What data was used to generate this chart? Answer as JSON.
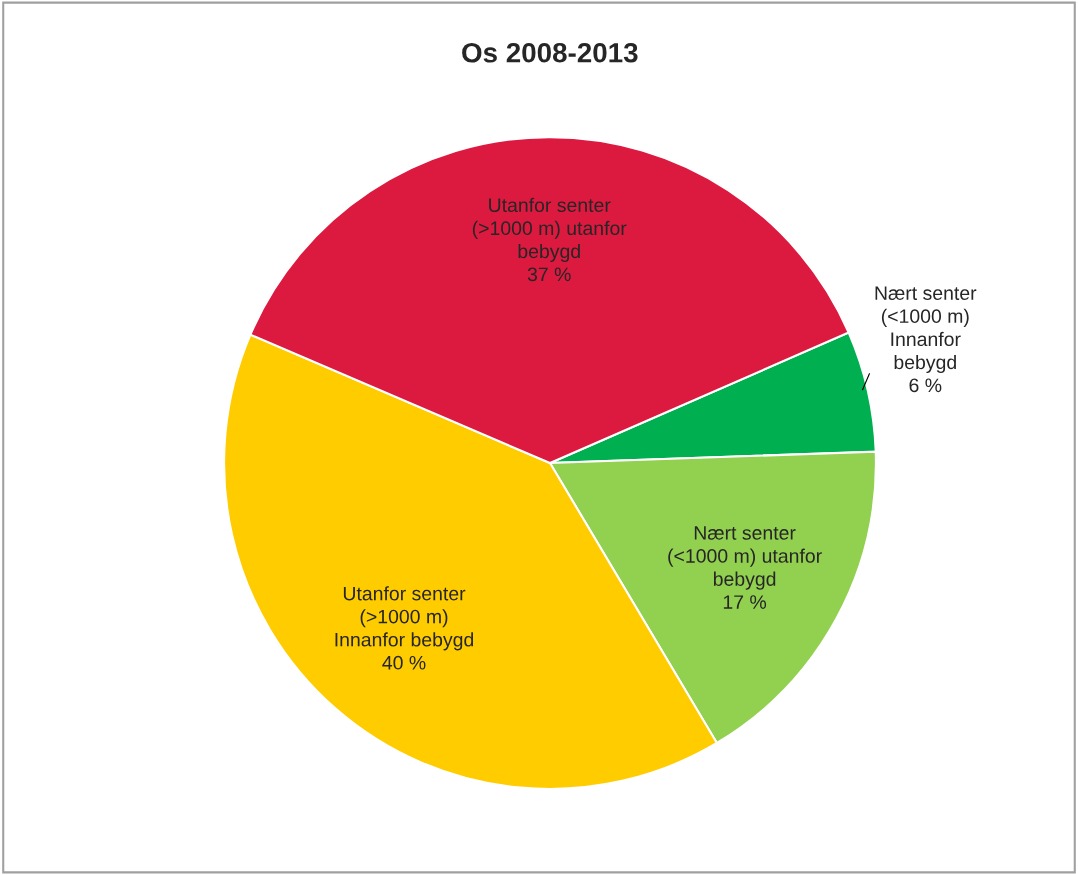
{
  "chart_data": {
    "type": "pie",
    "title": "Os 2008-2013",
    "categories": [
      "Nært senter\n(<1000 m)\nInnanfor\nbebygd",
      "Nært senter\n(<1000 m) utanfor\nbebygd",
      "Utanfor senter\n(>1000 m)\nInnanfor bebygd",
      "Utanfor senter\n(>1000 m) utanfor\nbebygd"
    ],
    "values": [
      6,
      17,
      40,
      37
    ],
    "value_labels": [
      "6 %",
      "17 %",
      "40 %",
      "37 %"
    ],
    "colors": [
      "#00b050",
      "#92d050",
      "#ffcc00",
      "#dc193f"
    ],
    "legend": false
  }
}
